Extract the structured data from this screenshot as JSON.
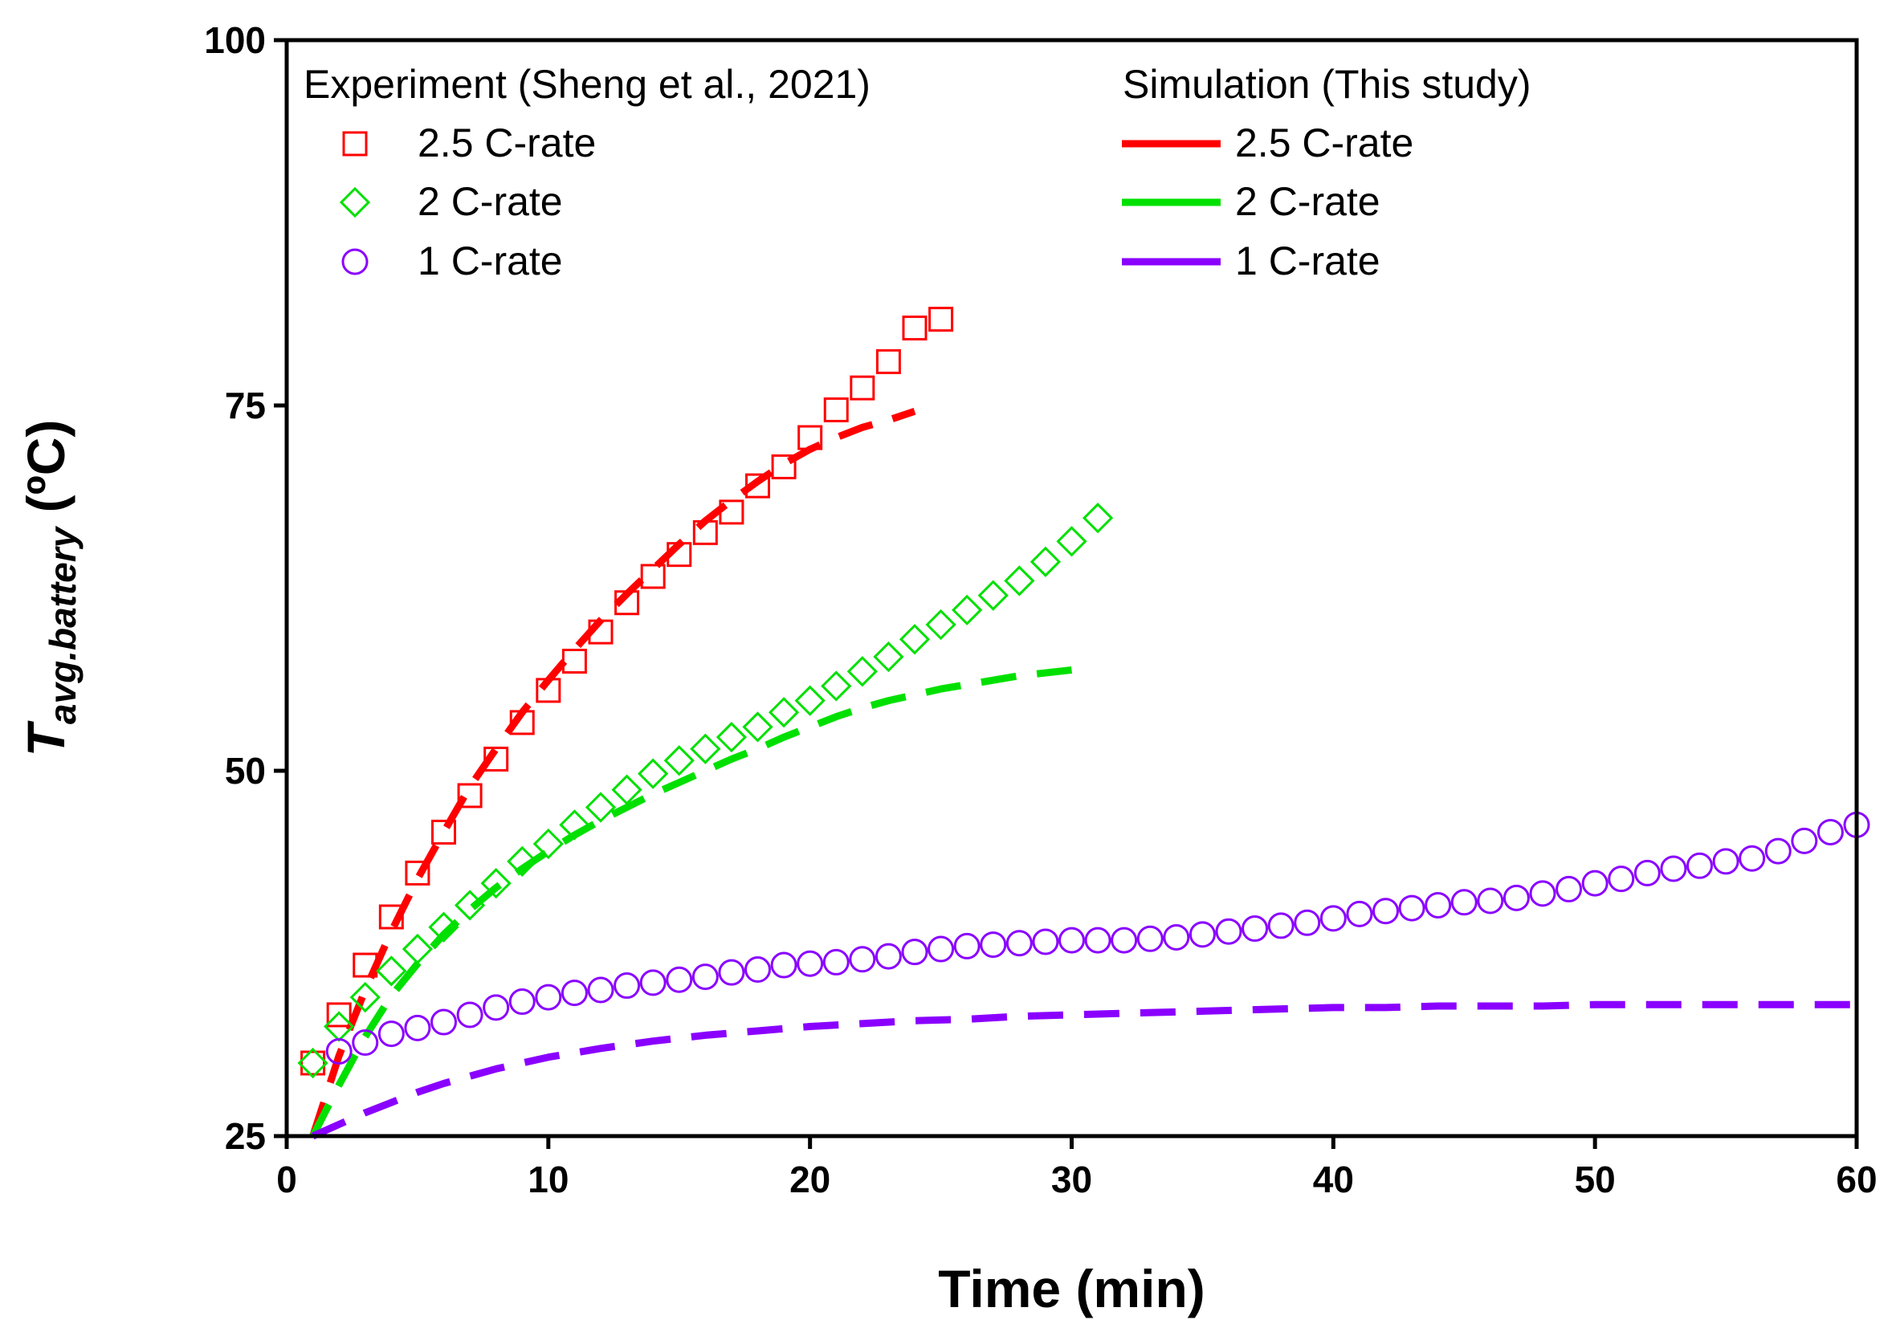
{
  "chart_data": {
    "type": "line",
    "xlabel": "Time (min)",
    "ylabel": {
      "main": "T",
      "subscript": "avg.battery",
      "unit": " (ºC)"
    },
    "xlim": [
      0,
      60
    ],
    "ylim": [
      25,
      100
    ],
    "xticks": [
      0,
      10,
      20,
      30,
      40,
      50,
      60
    ],
    "yticks": [
      25,
      50,
      75,
      100
    ],
    "legend": {
      "placement": "top",
      "experiment_title": "Experiment (Sheng et al., 2021)",
      "simulation_title": "Simulation (This study)"
    },
    "series": [
      {
        "name": "2.5 C-rate",
        "group": "experiment",
        "marker": "square",
        "color": "#ff0000",
        "x": [
          1,
          2,
          3,
          4,
          5,
          6,
          7,
          8,
          9,
          10,
          11,
          12,
          13,
          14,
          15,
          16,
          17,
          18,
          19,
          20,
          21,
          22,
          23,
          24,
          25
        ],
        "y": [
          30.0,
          33.3,
          36.7,
          40.0,
          43.0,
          45.8,
          48.3,
          50.8,
          53.3,
          55.5,
          57.5,
          59.5,
          61.5,
          63.3,
          64.8,
          66.3,
          67.7,
          69.5,
          70.8,
          72.8,
          74.7,
          76.2,
          78.0,
          80.3,
          80.9
        ]
      },
      {
        "name": "2 C-rate",
        "group": "experiment",
        "marker": "diamond",
        "color": "#00e000",
        "x": [
          1,
          2,
          3,
          4,
          5,
          6,
          7,
          8,
          9,
          10,
          11,
          12,
          13,
          14,
          15,
          16,
          17,
          18,
          19,
          20,
          21,
          22,
          23,
          24,
          25,
          26,
          27,
          28,
          29,
          30,
          31
        ],
        "y": [
          30.0,
          32.5,
          34.5,
          36.3,
          37.8,
          39.3,
          40.8,
          42.3,
          43.8,
          45.0,
          46.3,
          47.5,
          48.7,
          49.8,
          50.7,
          51.5,
          52.3,
          53.0,
          54.0,
          54.8,
          55.8,
          56.8,
          57.8,
          59.0,
          60.0,
          61.0,
          62.0,
          63.0,
          64.3,
          65.7,
          67.3
        ]
      },
      {
        "name": "1 C-rate",
        "group": "experiment",
        "marker": "circle",
        "color": "#8a00ff",
        "x": [
          2,
          3,
          4,
          5,
          6,
          7,
          8,
          9,
          10,
          11,
          12,
          13,
          14,
          15,
          16,
          17,
          18,
          19,
          20,
          21,
          22,
          23,
          24,
          25,
          26,
          27,
          28,
          29,
          30,
          31,
          32,
          33,
          34,
          35,
          36,
          37,
          38,
          39,
          40,
          41,
          42,
          43,
          44,
          45,
          46,
          47,
          48,
          49,
          50,
          51,
          52,
          53,
          54,
          55,
          56,
          57,
          58,
          59,
          60
        ],
        "y": [
          30.8,
          31.4,
          32.0,
          32.4,
          32.8,
          33.3,
          33.8,
          34.2,
          34.5,
          34.8,
          35.0,
          35.3,
          35.5,
          35.7,
          35.9,
          36.2,
          36.4,
          36.7,
          36.8,
          36.9,
          37.1,
          37.3,
          37.6,
          37.8,
          38.0,
          38.1,
          38.2,
          38.3,
          38.4,
          38.4,
          38.4,
          38.5,
          38.6,
          38.8,
          39.0,
          39.2,
          39.4,
          39.6,
          39.9,
          40.2,
          40.4,
          40.6,
          40.8,
          41.0,
          41.1,
          41.3,
          41.6,
          41.9,
          42.3,
          42.6,
          43.0,
          43.3,
          43.5,
          43.8,
          44.0,
          44.5,
          45.2,
          45.8,
          46.3
        ]
      },
      {
        "name": "2.5 C-rate",
        "group": "simulation",
        "style": "dashed",
        "color": "#ff0000",
        "x": [
          1,
          2,
          3,
          4,
          5,
          6,
          7,
          8,
          9,
          10,
          11,
          12,
          13,
          14,
          15,
          16,
          17,
          18,
          19,
          20,
          21,
          22,
          23,
          24
        ],
        "y": [
          25.0,
          30.5,
          35.0,
          39.0,
          42.6,
          45.8,
          48.9,
          51.5,
          54.0,
          56.2,
          58.3,
          60.3,
          62.1,
          63.8,
          65.5,
          67.1,
          68.5,
          69.8,
          71.0,
          72.0,
          72.8,
          73.5,
          74.0,
          74.6
        ]
      },
      {
        "name": "2 C-rate",
        "group": "simulation",
        "style": "dashed",
        "color": "#00e000",
        "x": [
          1,
          2,
          3,
          4,
          5,
          6,
          7,
          8,
          9,
          10,
          11,
          12,
          13,
          14,
          15,
          16,
          17,
          18,
          19,
          20,
          21,
          22,
          23,
          24,
          25,
          26,
          27,
          28,
          29,
          30
        ],
        "y": [
          25.0,
          28.5,
          31.8,
          34.6,
          36.8,
          38.8,
          40.5,
          42.0,
          43.3,
          44.5,
          45.6,
          46.6,
          47.5,
          48.4,
          49.2,
          50.0,
          50.8,
          51.5,
          52.3,
          53.0,
          53.7,
          54.3,
          54.8,
          55.2,
          55.6,
          55.9,
          56.2,
          56.5,
          56.7,
          56.9
        ]
      },
      {
        "name": "1 C-rate",
        "group": "simulation",
        "style": "dashed",
        "color": "#8a00ff",
        "x": [
          1,
          2,
          3,
          4,
          5,
          6,
          7,
          8,
          9,
          10,
          12,
          14,
          16,
          18,
          20,
          22,
          24,
          26,
          28,
          30,
          32,
          34,
          36,
          38,
          40,
          42,
          44,
          46,
          48,
          50,
          52,
          54,
          56,
          58,
          60
        ],
        "y": [
          25.0,
          25.8,
          26.6,
          27.3,
          28.0,
          28.6,
          29.1,
          29.6,
          30.0,
          30.4,
          31.0,
          31.5,
          31.9,
          32.2,
          32.5,
          32.7,
          32.9,
          33.0,
          33.2,
          33.3,
          33.4,
          33.5,
          33.6,
          33.7,
          33.8,
          33.8,
          33.9,
          33.9,
          33.9,
          34.0,
          34.0,
          34.0,
          34.0,
          34.0,
          34.0
        ]
      }
    ]
  }
}
